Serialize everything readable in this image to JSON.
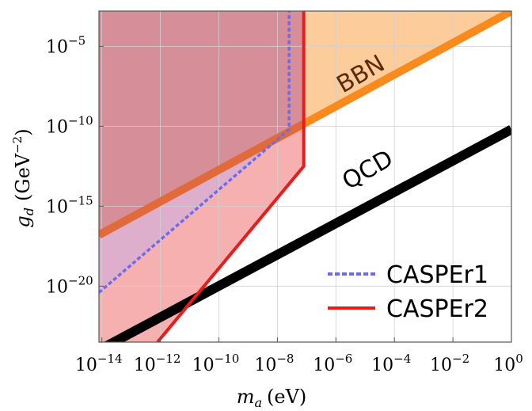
{
  "chart_data": {
    "type": "line",
    "title": "",
    "xlabel": {
      "base": "m",
      "sub": "a",
      "unit": "(eV)"
    },
    "ylabel": {
      "base": "g",
      "sub": "d",
      "unit_open": "(GeV",
      "unit_exp": "−2",
      "unit_close": ")"
    },
    "xscale": "log10",
    "yscale": "log10",
    "xlim_log10": [
      -14.1,
      0
    ],
    "ylim_log10": [
      -23.5,
      -2.8
    ],
    "grid": true,
    "x_ticks": [
      {
        "base": "10",
        "exp": "−14",
        "at": -14
      },
      {
        "base": "10",
        "exp": "−12",
        "at": -12
      },
      {
        "base": "10",
        "exp": "−10",
        "at": -10
      },
      {
        "base": "10",
        "exp": "−8",
        "at": -8
      },
      {
        "base": "10",
        "exp": "−6",
        "at": -6
      },
      {
        "base": "10",
        "exp": "−4",
        "at": -4
      },
      {
        "base": "10",
        "exp": "−2",
        "at": -2
      },
      {
        "base": "10",
        "exp": "0",
        "at": 0
      }
    ],
    "y_ticks": [
      {
        "base": "10",
        "exp": "−5",
        "at": -5
      },
      {
        "base": "10",
        "exp": "−10",
        "at": -10
      },
      {
        "base": "10",
        "exp": "−15",
        "at": -15
      },
      {
        "base": "10",
        "exp": "−20",
        "at": -20
      }
    ],
    "series": [
      {
        "name": "BBN",
        "color": "#fb8a1d",
        "fill": "#fccc9b",
        "label": "BBN",
        "points_log10": [
          [
            -14.1,
            -16.8
          ],
          [
            0,
            -2.8
          ]
        ]
      },
      {
        "name": "QCD",
        "color": "#000000",
        "label": "QCD",
        "points_log10": [
          [
            -14.1,
            -24.0
          ],
          [
            0,
            -10.2
          ]
        ]
      },
      {
        "name": "CASPEr1",
        "color": "#6b6bf0",
        "fill": "#c9aee6",
        "style": "dashed",
        "points_log10": [
          [
            -14.1,
            -20.4
          ],
          [
            -7.6,
            -10.2
          ],
          [
            -7.6,
            -2.8
          ]
        ]
      },
      {
        "name": "CASPEr2",
        "color": "#f01818",
        "fill": "#f7b0b0",
        "style": "solid",
        "points_log10": [
          [
            -12.1,
            -23.5
          ],
          [
            -7.1,
            -12.5
          ],
          [
            -7.1,
            -2.8
          ]
        ]
      }
    ],
    "overlap_colors": {
      "BBN_and_CASPEr": "#d68e98"
    },
    "legend": {
      "position": "bottom-right",
      "entries": [
        {
          "label": "CASPEr1",
          "color": "#6b6bf0",
          "style": "dashed"
        },
        {
          "label": "CASPEr2",
          "color": "#f01818",
          "style": "solid"
        }
      ]
    }
  }
}
